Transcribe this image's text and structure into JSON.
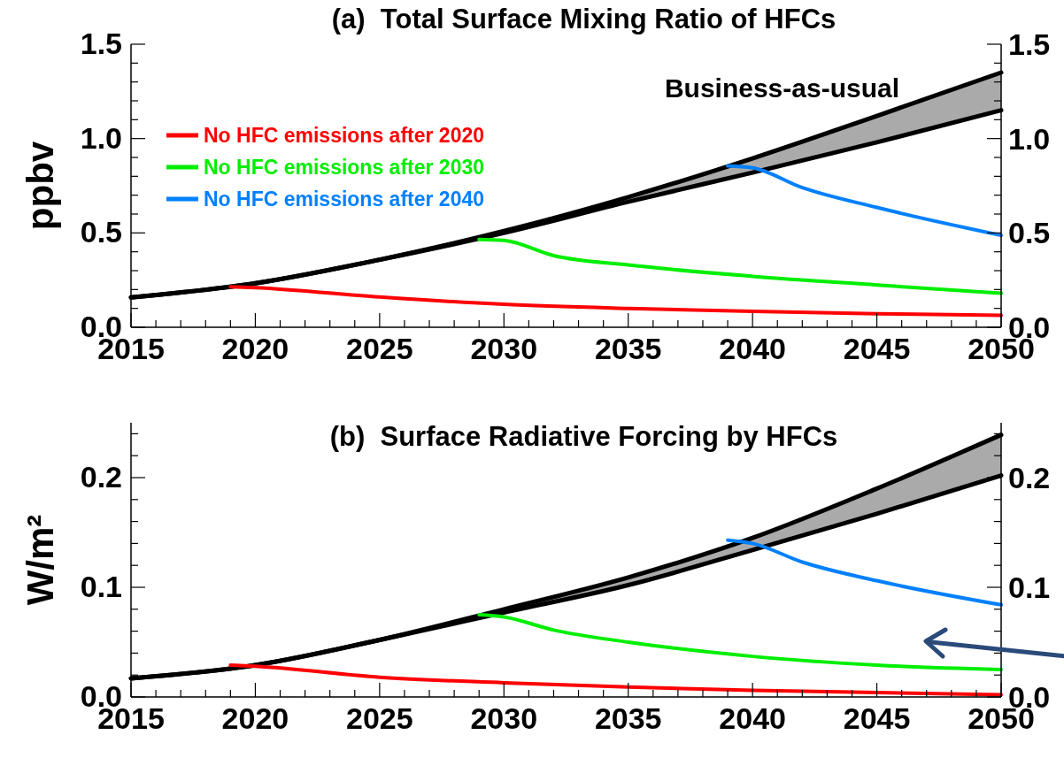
{
  "chart_data": [
    {
      "type": "line",
      "title": "(a)  Total Surface Mixing Ratio of HFCs",
      "ylabel": "ppbv",
      "xlim": [
        2015,
        2050
      ],
      "xticks": [
        2015,
        {
          "value": 2016,
          "label": null
        },
        {
          "value": 2017,
          "label": null
        },
        {
          "value": 2018,
          "label": null
        },
        {
          "value": 2019,
          "label": null
        },
        2020,
        {
          "value": 2021,
          "label": null
        },
        {
          "value": 2022,
          "label": null
        },
        {
          "value": 2023,
          "label": null
        },
        {
          "value": 2024,
          "label": null
        },
        2025,
        {
          "value": 2026,
          "label": null
        },
        {
          "value": 2027,
          "label": null
        },
        {
          "value": 2028,
          "label": null
        },
        {
          "value": 2029,
          "label": null
        },
        2030,
        {
          "value": 2031,
          "label": null
        },
        {
          "value": 2032,
          "label": null
        },
        {
          "value": 2033,
          "label": null
        },
        {
          "value": 2034,
          "label": null
        },
        2035,
        {
          "value": 2036,
          "label": null
        },
        {
          "value": 2037,
          "label": null
        },
        {
          "value": 2038,
          "label": null
        },
        {
          "value": 2039,
          "label": null
        },
        2040,
        {
          "value": 2041,
          "label": null
        },
        {
          "value": 2042,
          "label": null
        },
        {
          "value": 2043,
          "label": null
        },
        {
          "value": 2044,
          "label": null
        },
        2045,
        {
          "value": 2046,
          "label": null
        },
        {
          "value": 2047,
          "label": null
        },
        {
          "value": 2048,
          "label": null
        },
        {
          "value": 2049,
          "label": null
        },
        2050
      ],
      "ylim": [
        0,
        1.5
      ],
      "yticks": [
        {
          "value": 0,
          "label": "0.0"
        },
        {
          "value": 0.1,
          "label": null
        },
        {
          "value": 0.2,
          "label": null
        },
        {
          "value": 0.3,
          "label": null
        },
        {
          "value": 0.4,
          "label": null
        },
        0.5,
        {
          "value": 0.6,
          "label": null
        },
        {
          "value": 0.7,
          "label": null
        },
        {
          "value": 0.8,
          "label": null
        },
        {
          "value": 0.9,
          "label": null
        },
        {
          "value": 1,
          "label": "1.0"
        },
        {
          "value": 1.1,
          "label": null
        },
        {
          "value": 1.2,
          "label": null
        },
        {
          "value": 1.3,
          "label": null
        },
        {
          "value": 1.4,
          "label": null
        },
        1.5
      ],
      "y2lim": [
        0,
        1.5
      ],
      "y2ticks": [
        {
          "value": 0,
          "label": "0.0"
        },
        {
          "value": 0.1,
          "label": null
        },
        {
          "value": 0.2,
          "label": null
        },
        {
          "value": 0.3,
          "label": null
        },
        {
          "value": 0.4,
          "label": null
        },
        0.5,
        {
          "value": 0.6,
          "label": null
        },
        {
          "value": 0.7,
          "label": null
        },
        {
          "value": 0.8,
          "label": null
        },
        {
          "value": 0.9,
          "label": null
        },
        {
          "value": 1,
          "label": "1.0"
        },
        {
          "value": 1.1,
          "label": null
        },
        {
          "value": 1.2,
          "label": null
        },
        {
          "value": 1.3,
          "label": null
        },
        {
          "value": 1.4,
          "label": null
        },
        1.5
      ],
      "legend": "top left",
      "grid": false,
      "series": [
        {
          "name": "Business-as-usual",
          "color": "#000000",
          "x": [
            2015,
            2020,
            2025,
            2030,
            2035,
            2040,
            2045,
            2050
          ],
          "values": [
            0.158,
            0.233,
            0.358,
            0.51,
            0.69,
            0.895,
            1.12,
            1.35
          ],
          "lower": [
            0.158,
            0.233,
            0.358,
            0.5,
            0.665,
            0.82,
            0.98,
            1.15
          ],
          "upper": [
            0.158,
            0.233,
            0.358,
            0.51,
            0.69,
            0.895,
            1.12,
            1.35
          ]
        },
        {
          "color": "#000000",
          "x": [
            2015,
            2020,
            2025,
            2030,
            2035,
            2040,
            2045,
            2050
          ],
          "values": [
            0.158,
            0.233,
            0.358,
            0.5,
            0.665,
            0.82,
            0.98,
            1.15
          ]
        },
        {
          "name": "No HFC emissions after 2020",
          "color": "#ff0000",
          "x": [
            2019,
            2020,
            2025,
            2030,
            2035,
            2040,
            2045,
            2050
          ],
          "values": [
            0.215,
            0.21,
            0.16,
            0.122,
            0.1,
            0.084,
            0.072,
            0.063
          ]
        },
        {
          "name": "No HFC emissions after 2030",
          "color": "#00ee00",
          "x": [
            2029,
            2030,
            2032,
            2035,
            2040,
            2045,
            2050
          ],
          "values": [
            0.465,
            0.46,
            0.38,
            0.33,
            0.27,
            0.224,
            0.18
          ]
        },
        {
          "name": "No HFC emissions after 2040",
          "color": "#0080ff",
          "x": [
            2039,
            2040,
            2042,
            2045,
            2050
          ],
          "values": [
            0.855,
            0.845,
            0.74,
            0.635,
            0.487
          ]
        }
      ]
    },
    {
      "type": "line",
      "title": "(b)  Surface Radiative Forcing by HFCs",
      "ylabel": "W/m²",
      "xlim": [
        2015,
        2050
      ],
      "xticks": [
        2015,
        {
          "value": 2016,
          "label": null
        },
        {
          "value": 2017,
          "label": null
        },
        {
          "value": 2018,
          "label": null
        },
        {
          "value": 2019,
          "label": null
        },
        2020,
        {
          "value": 2021,
          "label": null
        },
        {
          "value": 2022,
          "label": null
        },
        {
          "value": 2023,
          "label": null
        },
        {
          "value": 2024,
          "label": null
        },
        2025,
        {
          "value": 2026,
          "label": null
        },
        {
          "value": 2027,
          "label": null
        },
        {
          "value": 2028,
          "label": null
        },
        {
          "value": 2029,
          "label": null
        },
        2030,
        {
          "value": 2031,
          "label": null
        },
        {
          "value": 2032,
          "label": null
        },
        {
          "value": 2033,
          "label": null
        },
        {
          "value": 2034,
          "label": null
        },
        2035,
        {
          "value": 2036,
          "label": null
        },
        {
          "value": 2037,
          "label": null
        },
        {
          "value": 2038,
          "label": null
        },
        {
          "value": 2039,
          "label": null
        },
        2040,
        {
          "value": 2041,
          "label": null
        },
        {
          "value": 2042,
          "label": null
        },
        {
          "value": 2043,
          "label": null
        },
        {
          "value": 2044,
          "label": null
        },
        2045,
        {
          "value": 2046,
          "label": null
        },
        {
          "value": 2047,
          "label": null
        },
        {
          "value": 2048,
          "label": null
        },
        {
          "value": 2049,
          "label": null
        },
        2050
      ],
      "ylim": [
        0,
        0.25
      ],
      "yticks": [
        {
          "value": 0,
          "label": "0.0"
        },
        {
          "value": 0.02,
          "label": null
        },
        {
          "value": 0.04,
          "label": null
        },
        {
          "value": 0.06,
          "label": null
        },
        {
          "value": 0.08,
          "label": null
        },
        0.1,
        {
          "value": 0.12,
          "label": null
        },
        {
          "value": 0.14,
          "label": null
        },
        {
          "value": 0.16,
          "label": null
        },
        {
          "value": 0.18,
          "label": null
        },
        0.2,
        {
          "value": 0.22,
          "label": null
        },
        {
          "value": 0.24,
          "label": null
        }
      ],
      "y2lim": [
        0,
        0.25
      ],
      "y2ticks": [
        {
          "value": 0,
          "label": "0.0"
        },
        {
          "value": 0.02,
          "label": null
        },
        {
          "value": 0.04,
          "label": null
        },
        {
          "value": 0.06,
          "label": null
        },
        {
          "value": 0.08,
          "label": null
        },
        0.1,
        {
          "value": 0.12,
          "label": null
        },
        {
          "value": 0.14,
          "label": null
        },
        {
          "value": 0.16,
          "label": null
        },
        {
          "value": 0.18,
          "label": null
        },
        0.2,
        {
          "value": 0.22,
          "label": null
        },
        {
          "value": 0.24,
          "label": null
        }
      ],
      "grid": false,
      "series": [
        {
          "color": "#000000",
          "x": [
            2015,
            2020,
            2025,
            2030,
            2035,
            2040,
            2045,
            2050
          ],
          "values": [
            0.017,
            0.029,
            0.052,
            0.08,
            0.109,
            0.145,
            0.19,
            0.239
          ],
          "lower": [
            0.017,
            0.029,
            0.052,
            0.077,
            0.102,
            0.134,
            0.167,
            0.202
          ],
          "upper": [
            0.017,
            0.029,
            0.052,
            0.08,
            0.109,
            0.145,
            0.19,
            0.239
          ]
        },
        {
          "color": "#000000",
          "x": [
            2015,
            2020,
            2025,
            2030,
            2035,
            2040,
            2045,
            2050
          ],
          "values": [
            0.017,
            0.029,
            0.052,
            0.077,
            0.102,
            0.134,
            0.167,
            0.202
          ]
        },
        {
          "color": "#ff0000",
          "x": [
            2019,
            2020,
            2025,
            2030,
            2035,
            2040,
            2045,
            2050
          ],
          "values": [
            0.029,
            0.028,
            0.018,
            0.013,
            0.009,
            0.006,
            0.004,
            0.002
          ]
        },
        {
          "color": "#00ee00",
          "x": [
            2029,
            2030,
            2032,
            2035,
            2040,
            2045,
            2050
          ],
          "values": [
            0.075,
            0.073,
            0.061,
            0.05,
            0.037,
            0.029,
            0.025
          ]
        },
        {
          "color": "#0080ff",
          "x": [
            2039,
            2040,
            2042,
            2045,
            2050
          ],
          "values": [
            0.143,
            0.14,
            0.123,
            0.106,
            0.084
          ]
        }
      ]
    }
  ]
}
